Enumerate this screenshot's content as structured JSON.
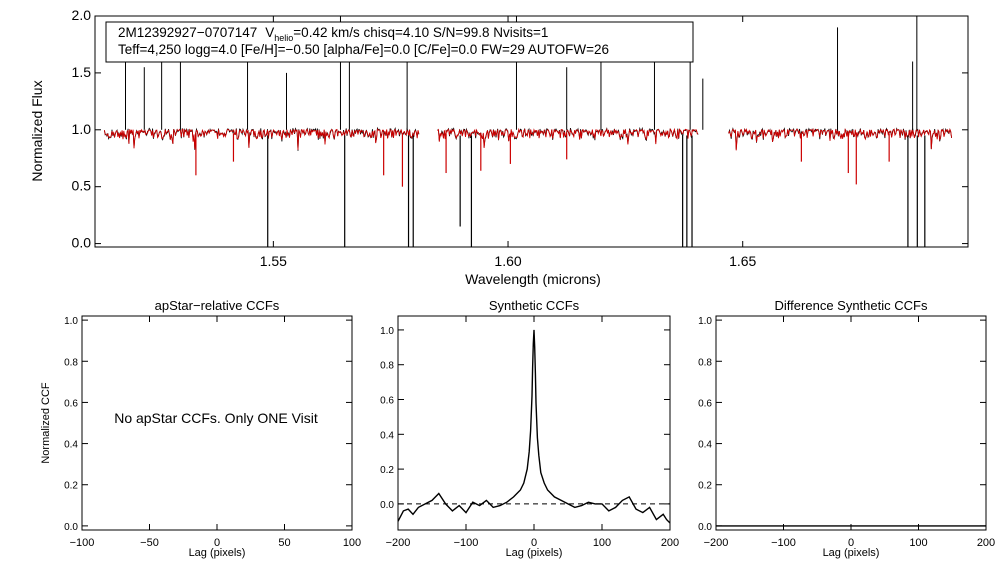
{
  "info_box": {
    "line1_id": "2M12392927−0707147",
    "line1_v": "V",
    "line1_sub": "helio",
    "line1_rest": "=0.42 km/s  chisq=4.10  S/N=99.8  Nvisits=1",
    "line2": "Teff=4,250 logg=4.0 [Fe/H]=−0.50 [alpha/Fe]=0.0 [C/Fe]=0.0 FW=29 AUTOFW=26"
  },
  "placeholder_text": "No apStar CCFs.  Only ONE Visit",
  "colors": {
    "observed": "#000000",
    "model": "#cc0000",
    "zero_line": "#000000"
  },
  "chart_data": [
    {
      "id": "spectrum",
      "type": "line",
      "title": "",
      "xlabel": "Wavelength (microns)",
      "ylabel": "Normalized Flux",
      "xlim": [
        1.512,
        1.698
      ],
      "ylim": [
        -0.03,
        2.0
      ],
      "xticks": [
        {
          "v": 1.55,
          "label": "1.55"
        },
        {
          "v": 1.6,
          "label": "1.60"
        },
        {
          "v": 1.65,
          "label": "1.65"
        }
      ],
      "yticks": [
        {
          "v": 0.0,
          "label": "0.0"
        },
        {
          "v": 0.5,
          "label": "0.5"
        },
        {
          "v": 1.0,
          "label": "1.0"
        },
        {
          "v": 1.5,
          "label": "1.5"
        },
        {
          "v": 2.0,
          "label": "2.0"
        }
      ],
      "segments": [
        {
          "start": 1.514,
          "end": 1.581
        },
        {
          "start": 1.585,
          "end": 1.6405
        },
        {
          "start": 1.647,
          "end": 1.6945
        }
      ],
      "emission_spikes": [
        1.5185,
        1.5225,
        1.5262,
        1.5302,
        1.5445,
        1.5528,
        1.5643,
        1.5662,
        1.5785,
        1.6018,
        1.6125,
        1.6198,
        1.6312,
        1.6388,
        1.6415,
        1.6702,
        1.6862,
        1.6871
      ],
      "spike_heights": [
        1.7,
        1.55,
        1.95,
        1.65,
        1.8,
        1.5,
        2.0,
        1.85,
        1.6,
        2.0,
        1.55,
        1.9,
        1.75,
        1.85,
        1.45,
        1.9,
        1.6,
        2.0
      ],
      "absorption_dips": [
        1.5488,
        1.5652,
        1.5788,
        1.5798,
        1.5898,
        1.5922,
        1.6372,
        1.6381,
        1.6392,
        1.6852,
        1.6872,
        1.6888
      ],
      "dip_depths": [
        -0.1,
        -0.1,
        -0.1,
        -0.1,
        0.15,
        -0.1,
        -0.1,
        -0.1,
        -0.1,
        -0.1,
        -0.1,
        -0.1
      ],
      "model_lines": [
        {
          "x": 1.5335,
          "y": 0.6
        },
        {
          "x": 1.5415,
          "y": 0.72
        },
        {
          "x": 1.5735,
          "y": 0.6
        },
        {
          "x": 1.5775,
          "y": 0.5
        },
        {
          "x": 1.5868,
          "y": 0.62
        },
        {
          "x": 1.5942,
          "y": 0.64
        },
        {
          "x": 1.6005,
          "y": 0.7
        },
        {
          "x": 1.6125,
          "y": 0.74
        },
        {
          "x": 1.6625,
          "y": 0.72
        },
        {
          "x": 1.6725,
          "y": 0.62
        },
        {
          "x": 1.6742,
          "y": 0.52
        },
        {
          "x": 1.6812,
          "y": 0.72
        }
      ]
    },
    {
      "id": "apstar-ccf",
      "type": "line",
      "title": "apStar−relative CCFs",
      "xlabel": "Lag (pixels)",
      "ylabel": "Normalized CCF",
      "xlim": [
        -100,
        100
      ],
      "ylim": [
        -0.02,
        1.02
      ],
      "xticks": [
        {
          "v": -100,
          "label": "−100"
        },
        {
          "v": -50,
          "label": "−50"
        },
        {
          "v": 0,
          "label": "0"
        },
        {
          "v": 50,
          "label": "50"
        },
        {
          "v": 100,
          "label": "100"
        }
      ],
      "yticks": [
        {
          "v": 0.0,
          "label": "0.0"
        },
        {
          "v": 0.2,
          "label": "0.2"
        },
        {
          "v": 0.4,
          "label": "0.4"
        },
        {
          "v": 0.6,
          "label": "0.6"
        },
        {
          "v": 0.8,
          "label": "0.8"
        },
        {
          "v": 1.0,
          "label": "1.0"
        }
      ],
      "series": []
    },
    {
      "id": "synthetic-ccf",
      "type": "line",
      "title": "Synthetic CCFs",
      "xlabel": "Lag (pixels)",
      "ylabel": "",
      "xlim": [
        -200,
        200
      ],
      "ylim": [
        -0.15,
        1.08
      ],
      "xticks": [
        {
          "v": -200,
          "label": "−200"
        },
        {
          "v": -100,
          "label": "−100"
        },
        {
          "v": 0,
          "label": "0"
        },
        {
          "v": 100,
          "label": "100"
        },
        {
          "v": 200,
          "label": "200"
        }
      ],
      "yticks": [
        {
          "v": 0.0,
          "label": "0.0"
        },
        {
          "v": 0.2,
          "label": "0.2"
        },
        {
          "v": 0.4,
          "label": "0.4"
        },
        {
          "v": 0.6,
          "label": "0.6"
        },
        {
          "v": 0.8,
          "label": "0.8"
        },
        {
          "v": 1.0,
          "label": "1.0"
        }
      ],
      "zero_line": true,
      "series": [
        {
          "x": [
            -200,
            -192,
            -185,
            -178,
            -170,
            -160,
            -150,
            -140,
            -130,
            -120,
            -110,
            -100,
            -90,
            -80,
            -70,
            -60,
            -50,
            -40,
            -30,
            -20,
            -15,
            -10,
            -7,
            -5,
            -3,
            -2,
            -1,
            0,
            1,
            2,
            3,
            5,
            7,
            10,
            15,
            20,
            30,
            40,
            50,
            60,
            70,
            80,
            90,
            100,
            110,
            120,
            130,
            140,
            150,
            160,
            170,
            180,
            190,
            195,
            200
          ],
          "y": [
            -0.1,
            -0.04,
            -0.03,
            -0.06,
            -0.02,
            0.0,
            0.02,
            0.06,
            0.0,
            -0.04,
            -0.01,
            -0.05,
            0.01,
            -0.01,
            0.02,
            -0.02,
            -0.01,
            0.01,
            0.04,
            0.08,
            0.12,
            0.2,
            0.3,
            0.42,
            0.62,
            0.78,
            0.92,
            1.0,
            0.9,
            0.75,
            0.58,
            0.38,
            0.28,
            0.18,
            0.12,
            0.08,
            0.04,
            0.02,
            0.0,
            -0.02,
            -0.01,
            0.01,
            0.0,
            0.0,
            -0.04,
            -0.02,
            0.02,
            0.04,
            -0.03,
            -0.05,
            -0.02,
            -0.09,
            -0.06,
            -0.09,
            -0.11
          ]
        }
      ]
    },
    {
      "id": "difference-ccf",
      "type": "line",
      "title": "Difference Synthetic CCFs",
      "xlabel": "Lag (pixels)",
      "ylabel": "",
      "xlim": [
        -200,
        200
      ],
      "ylim": [
        -0.02,
        1.02
      ],
      "xticks": [
        {
          "v": -200,
          "label": "−200"
        },
        {
          "v": -100,
          "label": "−100"
        },
        {
          "v": 0,
          "label": "0"
        },
        {
          "v": 100,
          "label": "100"
        },
        {
          "v": 200,
          "label": "200"
        }
      ],
      "yticks": [
        {
          "v": 0.0,
          "label": "0.0"
        },
        {
          "v": 0.2,
          "label": "0.2"
        },
        {
          "v": 0.4,
          "label": "0.4"
        },
        {
          "v": 0.6,
          "label": "0.6"
        },
        {
          "v": 0.8,
          "label": "0.8"
        },
        {
          "v": 1.0,
          "label": "1.0"
        }
      ],
      "series": [
        {
          "x": [
            -200,
            200
          ],
          "y": [
            0.0,
            0.0
          ]
        }
      ]
    }
  ]
}
